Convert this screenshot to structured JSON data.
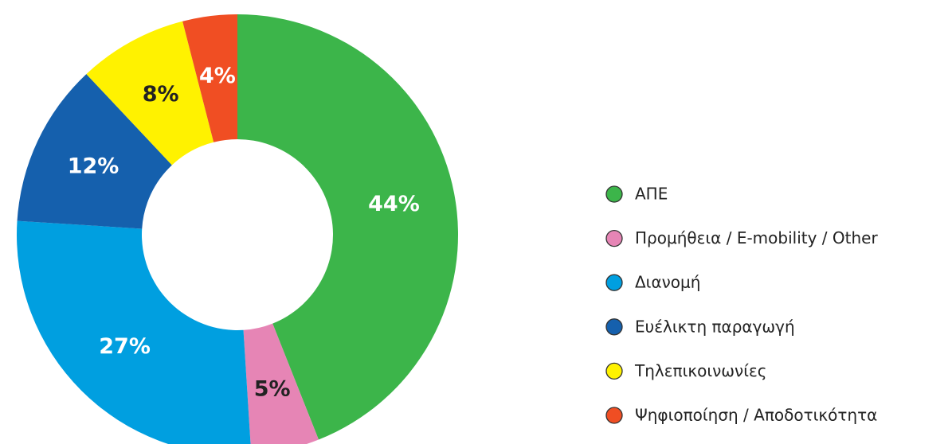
{
  "chart_data": {
    "type": "donut",
    "categories": [
      "ΑΠΕ",
      "Προμήθεια / E-mobility / Other",
      "Διανομή",
      "Ευέλικτη παραγωγή",
      "Τηλεπικοινωνίες",
      "Ψηφιοποίηση / Αποδοτικότητα"
    ],
    "values": [
      44,
      5,
      27,
      12,
      8,
      4
    ],
    "value_labels": [
      "44%",
      "5%",
      "27%",
      "12%",
      "8%",
      "4%"
    ],
    "colors": [
      "#3cb54a",
      "#e685b5",
      "#009fe0",
      "#1560ad",
      "#fff200",
      "#f04e23"
    ],
    "legend": "right"
  }
}
